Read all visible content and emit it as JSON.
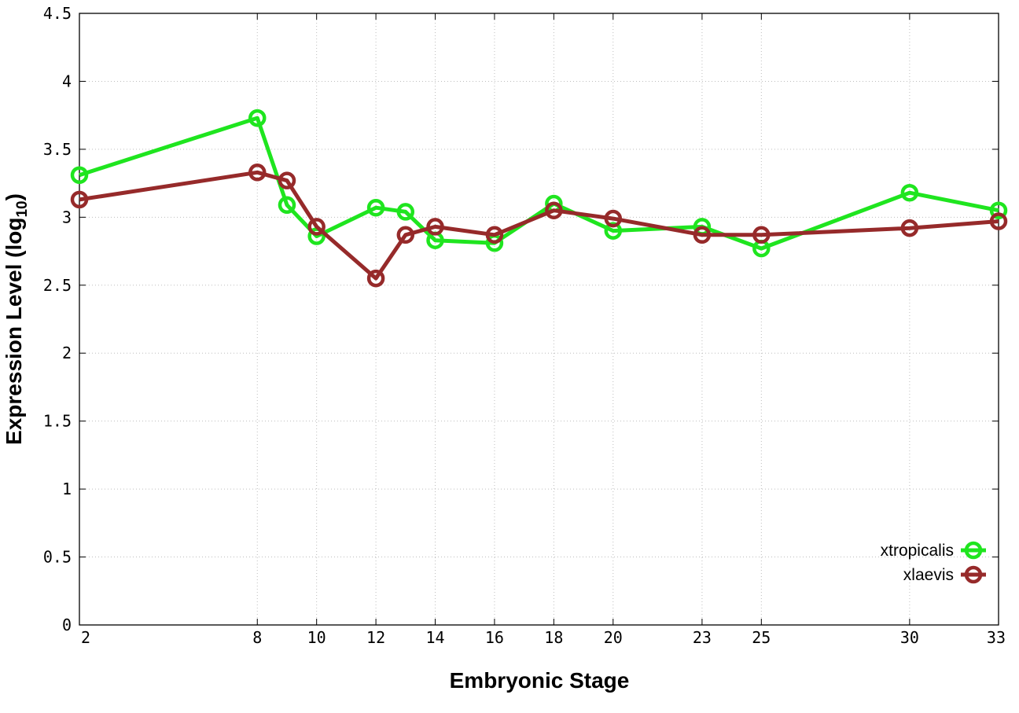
{
  "chart_data": {
    "type": "line",
    "xlabel": "Embryonic Stage",
    "ylabel": "Expression Level (log",
    "ylabel_sub": "10",
    "ylabel_close": ")",
    "x": [
      2,
      8,
      9,
      10,
      12,
      13,
      14,
      16,
      18,
      20,
      23,
      25,
      30,
      33
    ],
    "x_tick_labels": [
      "2",
      "8",
      "10",
      "12",
      "14",
      "16",
      "18",
      "20",
      "23",
      "25",
      "30",
      "33"
    ],
    "x_tick_values": [
      2,
      8,
      10,
      12,
      14,
      16,
      18,
      20,
      23,
      25,
      30,
      33
    ],
    "y_tick_labels": [
      "0",
      "0.5",
      "1",
      "1.5",
      "2",
      "2.5",
      "3",
      "3.5",
      "4",
      "4.5"
    ],
    "y_tick_values": [
      0,
      0.5,
      1,
      1.5,
      2,
      2.5,
      3,
      3.5,
      4,
      4.5
    ],
    "xlim": [
      2,
      33
    ],
    "ylim": [
      0,
      4.5
    ],
    "grid": true,
    "legend_position": "bottom-right",
    "series": [
      {
        "name": "xtropicalis",
        "color": "#1fe51f",
        "values": [
          3.31,
          3.73,
          3.09,
          2.86,
          3.07,
          3.04,
          2.83,
          2.81,
          3.1,
          2.9,
          2.93,
          2.77,
          3.18,
          3.05
        ]
      },
      {
        "name": "xlaevis",
        "color": "#962a2a",
        "values": [
          3.13,
          3.33,
          3.27,
          2.93,
          2.55,
          2.87,
          2.93,
          2.87,
          3.05,
          2.99,
          2.87,
          2.87,
          2.92,
          2.97
        ]
      }
    ]
  }
}
